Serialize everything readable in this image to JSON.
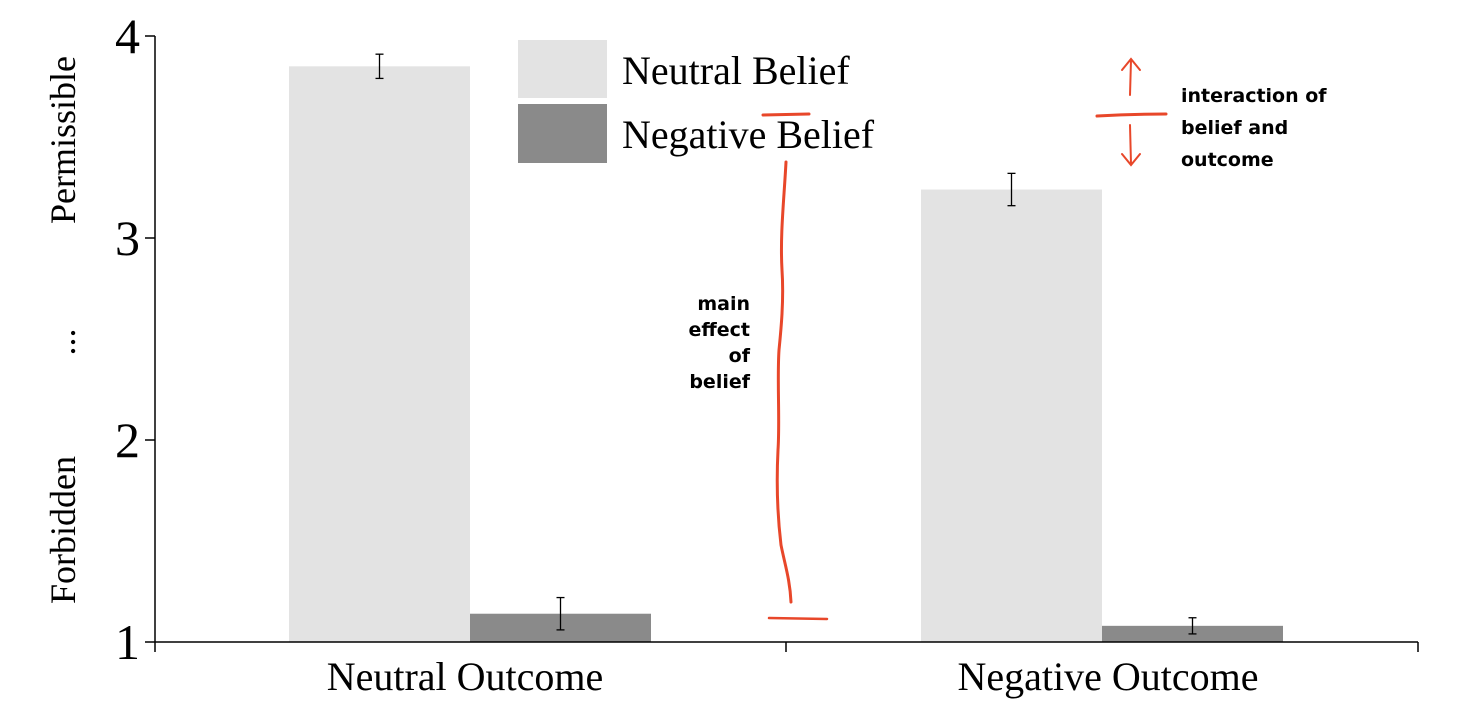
{
  "chart_data": {
    "type": "bar",
    "title": "",
    "xlabel": "",
    "ylabel_top": "Permissible",
    "ylabel_mid": "...",
    "ylabel_bottom": "Forbidden",
    "ylim": [
      1,
      4
    ],
    "yticks": [
      "1",
      "2",
      "3",
      "4"
    ],
    "categories": [
      "Neutral Outcome",
      "Negative Outcome"
    ],
    "series": [
      {
        "name": "Neutral Belief",
        "color": "#e3e3e3",
        "values": [
          3.85,
          3.24
        ],
        "error": [
          0.06,
          0.08
        ]
      },
      {
        "name": "Negative Belief",
        "color": "#8a8a8a",
        "values": [
          1.14,
          1.08
        ],
        "error": [
          0.08,
          0.04
        ]
      }
    ],
    "legend_position": "top-center",
    "grid": false,
    "annotations": {
      "color": "#e8472a",
      "main_effect_lines": [
        "main",
        "effect",
        "of",
        "belief"
      ],
      "interaction_lines": [
        "interaction of",
        "belief and",
        "outcome"
      ]
    }
  }
}
